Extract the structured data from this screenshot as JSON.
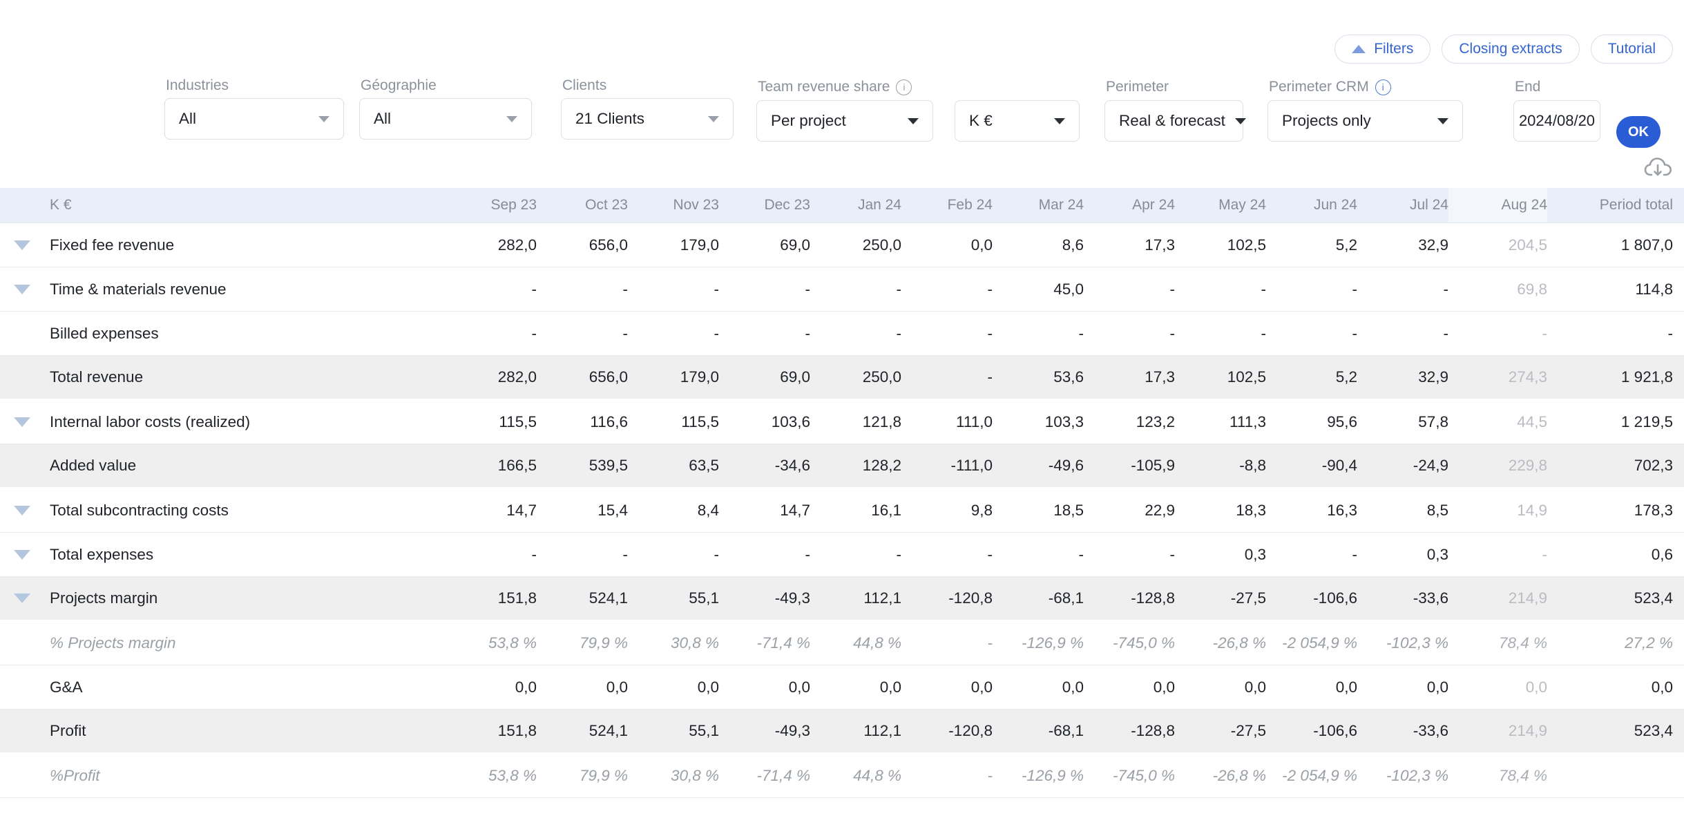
{
  "toolbar": {
    "filters_label": "Filters",
    "closing_extracts_label": "Closing extracts",
    "tutorial_label": "Tutorial"
  },
  "filters": {
    "industries": {
      "label": "Industries",
      "value": "All"
    },
    "geographie": {
      "label": "Géographie",
      "value": "All"
    },
    "clients": {
      "label": "Clients",
      "value": "21 Clients"
    },
    "team_revenue_share": {
      "label": "Team revenue share",
      "value": "Per project",
      "info_icon": "i"
    },
    "unit": {
      "value": "K €"
    },
    "perimeter": {
      "label": "Perimeter",
      "value": "Real & forecast"
    },
    "perimeter_crm": {
      "label": "Perimeter CRM",
      "value": "Projects only",
      "info_icon": "i"
    },
    "end": {
      "label": "End",
      "value": "2024/08/20"
    },
    "ok_label": "OK"
  },
  "table": {
    "unit_header": "K €",
    "columns": [
      "Sep 23",
      "Oct 23",
      "Nov 23",
      "Dec 23",
      "Jan 24",
      "Feb 24",
      "Mar 24",
      "Apr 24",
      "May 24",
      "Jun 24",
      "Jul 24",
      "Aug 24",
      "Period total"
    ],
    "rows": [
      {
        "label": "Fixed fee revenue",
        "expandable": true,
        "band": false,
        "pct": false,
        "values": [
          "282,0",
          "656,0",
          "179,0",
          "69,0",
          "250,0",
          "0,0",
          "8,6",
          "17,3",
          "102,5",
          "5,2",
          "32,9",
          "204,5",
          "1 807,0"
        ]
      },
      {
        "label": "Time & materials revenue",
        "expandable": true,
        "band": false,
        "pct": false,
        "values": [
          "-",
          "-",
          "-",
          "-",
          "-",
          "-",
          "45,0",
          "-",
          "-",
          "-",
          "-",
          "69,8",
          "114,8"
        ]
      },
      {
        "label": "Billed expenses",
        "expandable": false,
        "band": false,
        "pct": false,
        "values": [
          "-",
          "-",
          "-",
          "-",
          "-",
          "-",
          "-",
          "-",
          "-",
          "-",
          "-",
          "-",
          "-"
        ]
      },
      {
        "label": "Total revenue",
        "expandable": false,
        "band": true,
        "pct": false,
        "values": [
          "282,0",
          "656,0",
          "179,0",
          "69,0",
          "250,0",
          "-",
          "53,6",
          "17,3",
          "102,5",
          "5,2",
          "32,9",
          "274,3",
          "1 921,8"
        ]
      },
      {
        "label": "Internal labor costs (realized)",
        "expandable": true,
        "band": false,
        "pct": false,
        "values": [
          "115,5",
          "116,6",
          "115,5",
          "103,6",
          "121,8",
          "111,0",
          "103,3",
          "123,2",
          "111,3",
          "95,6",
          "57,8",
          "44,5",
          "1 219,5"
        ]
      },
      {
        "label": "Added value",
        "expandable": false,
        "band": true,
        "pct": false,
        "values": [
          "166,5",
          "539,5",
          "63,5",
          "-34,6",
          "128,2",
          "-111,0",
          "-49,6",
          "-105,9",
          "-8,8",
          "-90,4",
          "-24,9",
          "229,8",
          "702,3"
        ]
      },
      {
        "label": "Total subcontracting costs",
        "expandable": true,
        "band": false,
        "pct": false,
        "values": [
          "14,7",
          "15,4",
          "8,4",
          "14,7",
          "16,1",
          "9,8",
          "18,5",
          "22,9",
          "18,3",
          "16,3",
          "8,5",
          "14,9",
          "178,3"
        ]
      },
      {
        "label": "Total expenses",
        "expandable": true,
        "band": false,
        "pct": false,
        "values": [
          "-",
          "-",
          "-",
          "-",
          "-",
          "-",
          "-",
          "-",
          "0,3",
          "-",
          "0,3",
          "-",
          "0,6"
        ]
      },
      {
        "label": "Projects margin",
        "expandable": true,
        "band": true,
        "pct": false,
        "values": [
          "151,8",
          "524,1",
          "55,1",
          "-49,3",
          "112,1",
          "-120,8",
          "-68,1",
          "-128,8",
          "-27,5",
          "-106,6",
          "-33,6",
          "214,9",
          "523,4"
        ]
      },
      {
        "label": "% Projects margin",
        "expandable": false,
        "band": false,
        "pct": true,
        "values": [
          "53,8 %",
          "79,9 %",
          "30,8 %",
          "-71,4 %",
          "44,8 %",
          "-",
          "-126,9 %",
          "-745,0 %",
          "-26,8 %",
          "-2 054,9 %",
          "-102,3 %",
          "78,4 %",
          "27,2 %"
        ]
      },
      {
        "label": "G&A",
        "expandable": false,
        "band": false,
        "pct": false,
        "values": [
          "0,0",
          "0,0",
          "0,0",
          "0,0",
          "0,0",
          "0,0",
          "0,0",
          "0,0",
          "0,0",
          "0,0",
          "0,0",
          "0,0",
          "0,0"
        ]
      },
      {
        "label": "Profit",
        "expandable": false,
        "band": true,
        "pct": false,
        "values": [
          "151,8",
          "524,1",
          "55,1",
          "-49,3",
          "112,1",
          "-120,8",
          "-68,1",
          "-128,8",
          "-27,5",
          "-106,6",
          "-33,6",
          "214,9",
          "523,4"
        ]
      },
      {
        "label": "%Profit",
        "expandable": false,
        "band": false,
        "pct": true,
        "values": [
          "53,8 %",
          "79,9 %",
          "30,8 %",
          "-71,4 %",
          "44,8 %",
          "-",
          "-126,9 %",
          "-745,0 %",
          "-26,8 %",
          "-2 054,9 %",
          "-102,3 %",
          "78,4 %",
          ""
        ]
      }
    ]
  },
  "colors": {
    "accent_blue": "#2a5cd5",
    "link_blue": "#3565d0",
    "header_bg": "#e9eff8",
    "header_aug_bg": "#f3f7fc",
    "band_row_bg": "#efefef",
    "forecast_text": "#b9bcc1"
  }
}
